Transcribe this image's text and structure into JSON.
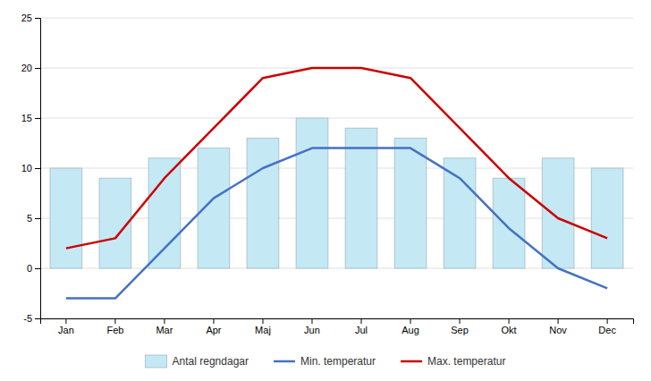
{
  "chart_data": {
    "type": "bar",
    "categories": [
      "Jan",
      "Feb",
      "Mar",
      "Apr",
      "Maj",
      "Jun",
      "Jul",
      "Aug",
      "Sep",
      "Okt",
      "Nov",
      "Dec"
    ],
    "series": [
      {
        "name": "Antal regndagar",
        "type": "bar",
        "color": "#c5e8f5",
        "values": [
          10,
          9,
          11,
          12,
          13,
          15,
          14,
          13,
          11,
          9,
          11,
          10
        ]
      },
      {
        "name": "Min. temperatur",
        "type": "line",
        "color": "#4472c4",
        "values": [
          -3,
          -3,
          2,
          7,
          10,
          12,
          12,
          12,
          9,
          4,
          0,
          -2
        ]
      },
      {
        "name": "Max. temperatur",
        "type": "line",
        "color": "#cc0000",
        "values": [
          2,
          3,
          9,
          14,
          19,
          20,
          20,
          19,
          14,
          9,
          5,
          3
        ]
      }
    ],
    "ylim": [
      -5,
      25
    ],
    "yticks": [
      -5,
      0,
      5,
      10,
      15,
      20,
      25
    ],
    "grid": true,
    "legend": "bottom"
  }
}
